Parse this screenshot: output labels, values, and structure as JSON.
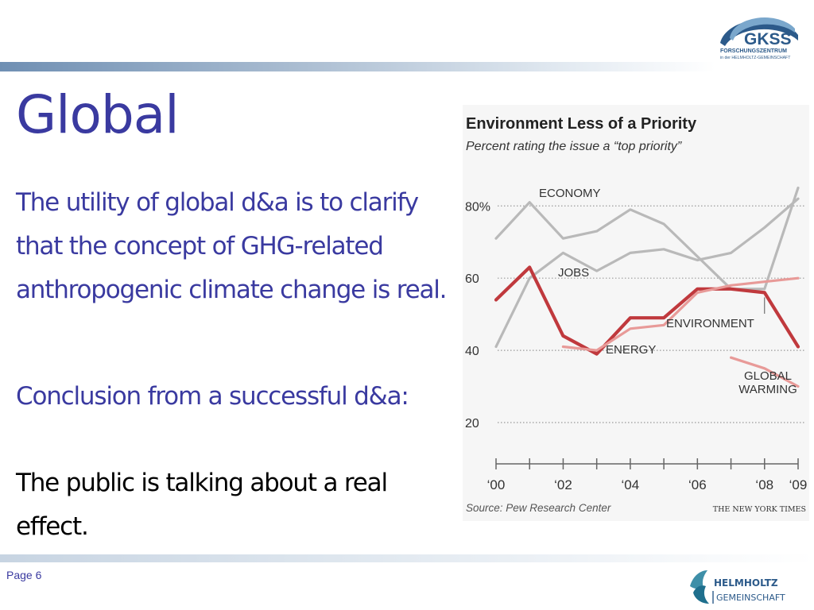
{
  "slide": {
    "title": "Global",
    "para1": "The utility of global d&a is to clarify that the concept of GHG-related anthropogenic climate change is real.",
    "para2": "Conclusion from a successful d&a:",
    "para3": "The public is talking about a real effect.",
    "page_label": "Page 6"
  },
  "logos": {
    "gkss_name": "GKSS",
    "gkss_line1": "FORSCHUNGSZENTRUM",
    "gkss_line2": "in der HELMHOLTZ-GEMEINSCHAFT",
    "helmholtz_line1": "HELMHOLTZ",
    "helmholtz_line2": "GEMEINSCHAFT"
  },
  "colors": {
    "slide_text": "#3a3aa0",
    "gray_series": "#b9b9b9",
    "environment": "#c0393d",
    "energy_gw": "#e89a98",
    "brand": "#2c5a8a"
  },
  "chart_data": {
    "type": "line",
    "title": "Environment Less of a Priority",
    "subtitle": "Percent rating the issue a “top priority”",
    "y_ticks": [
      {
        "value": 80,
        "label": "80%"
      },
      {
        "value": 60,
        "label": "60"
      },
      {
        "value": 40,
        "label": "40"
      },
      {
        "value": 20,
        "label": "20"
      }
    ],
    "x_ticks": [
      {
        "value": 2000,
        "label": "‘00"
      },
      {
        "value": 2002,
        "label": "‘02"
      },
      {
        "value": 2004,
        "label": "‘04"
      },
      {
        "value": 2006,
        "label": "‘06"
      },
      {
        "value": 2008,
        "label": "‘08"
      },
      {
        "value": 2009,
        "label": "‘09"
      }
    ],
    "xlim": [
      2000,
      2009
    ],
    "ylim": [
      20,
      86
    ],
    "grid": true,
    "source": "Source: Pew Research Center",
    "credit": "THE NEW YORK TIMES",
    "series": [
      {
        "name": "ECONOMY",
        "role": "gray",
        "x": [
          2000,
          2001,
          2002,
          2003,
          2004,
          2005,
          2006,
          2007,
          2008,
          2009
        ],
        "y": [
          71,
          81,
          71,
          73,
          79,
          75,
          66,
          57,
          57,
          85
        ]
      },
      {
        "name": "JOBS",
        "role": "gray",
        "x": [
          2000,
          2001,
          2002,
          2003,
          2004,
          2005,
          2006,
          2007,
          2008,
          2009
        ],
        "y": [
          41,
          60,
          67,
          62,
          67,
          68,
          65,
          67,
          74,
          82
        ]
      },
      {
        "name": "ENVIRONMENT",
        "role": "environment",
        "x": [
          2000,
          2001,
          2002,
          2003,
          2004,
          2005,
          2006,
          2007,
          2008,
          2009
        ],
        "y": [
          54,
          63,
          44,
          39,
          49,
          49,
          57,
          57,
          56,
          41
        ]
      },
      {
        "name": "ENERGY",
        "role": "energy_gw",
        "x": [
          2002,
          2003,
          2004,
          2005,
          2006,
          2007,
          2008,
          2009
        ],
        "y": [
          41,
          40,
          46,
          47,
          56,
          58,
          59,
          60
        ]
      },
      {
        "name": "GLOBAL WARMING",
        "role": "energy_gw",
        "x": [
          2007,
          2008,
          2009
        ],
        "y": [
          38,
          35,
          30
        ]
      }
    ]
  }
}
